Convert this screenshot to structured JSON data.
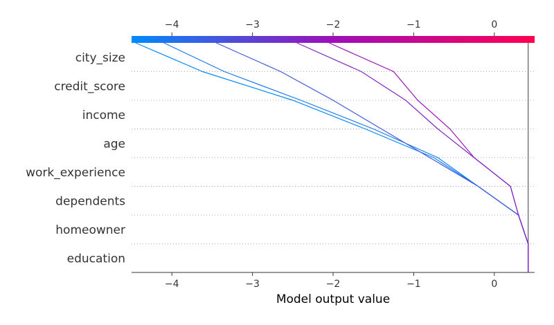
{
  "chart_data": {
    "type": "line",
    "subtype": "shap-decision-plot",
    "xlabel": "Model output value",
    "xlim": [
      -4.5,
      0.5
    ],
    "x_ticks": [
      -4,
      -3,
      -2,
      -1,
      0
    ],
    "x_tick_labels": [
      "−4",
      "−3",
      "−2",
      "−1",
      "0"
    ],
    "base_value": 0.42,
    "features": [
      "education",
      "homeowner",
      "dependents",
      "work_experience",
      "age",
      "income",
      "credit_score",
      "city_size"
    ],
    "colorbar": {
      "low": "#008bfb",
      "mid": "#9d0fb9",
      "high": "#ff0051"
    },
    "grid": "dotted horizontal lines between features",
    "series": [
      {
        "values": [
          0.42,
          0.42,
          0.3,
          -0.2,
          -0.75,
          -1.6,
          -2.5,
          -3.62,
          -4.45
        ]
      },
      {
        "values": [
          0.42,
          0.42,
          0.3,
          -0.2,
          -0.7,
          -1.5,
          -2.4,
          -3.35,
          -4.1
        ]
      },
      {
        "values": [
          0.42,
          0.42,
          0.3,
          -0.2,
          -0.8,
          -1.4,
          -2.0,
          -2.65,
          -3.45
        ]
      },
      {
        "values": [
          0.42,
          0.42,
          0.3,
          0.2,
          -0.25,
          -0.55,
          -0.95,
          -1.25,
          -2.05
        ]
      },
      {
        "values": [
          0.42,
          0.42,
          0.3,
          0.2,
          -0.25,
          -0.7,
          -1.1,
          -1.65,
          -2.45
        ]
      }
    ]
  }
}
